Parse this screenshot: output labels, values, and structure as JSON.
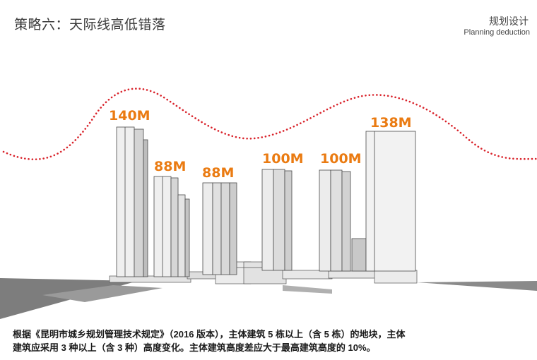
{
  "header": {
    "title": "策略六：天际线高低错落",
    "section_cn": "规划设计",
    "section_en": "Planning deduction"
  },
  "buildings": [
    {
      "label": "140M",
      "height_m": 140
    },
    {
      "label": "88M",
      "height_m": 88
    },
    {
      "label": "88M",
      "height_m": 88
    },
    {
      "label": "100M",
      "height_m": 100
    },
    {
      "label": "100M",
      "height_m": 100
    },
    {
      "label": "138M",
      "height_m": 138
    }
  ],
  "caption": {
    "line1": "根据《昆明市城乡规划管理技术规定》（2016 版本），主体建筑 5 栋以上（含 5 栋）的地块，主体",
    "line2": "建筑应采用 3 种以上（含 3 种）高度变化。主体建筑高度差应大于最高建筑高度的 10%。"
  },
  "colors": {
    "accent_orange": "#ea7b12",
    "skyline_red": "#d9232b"
  }
}
